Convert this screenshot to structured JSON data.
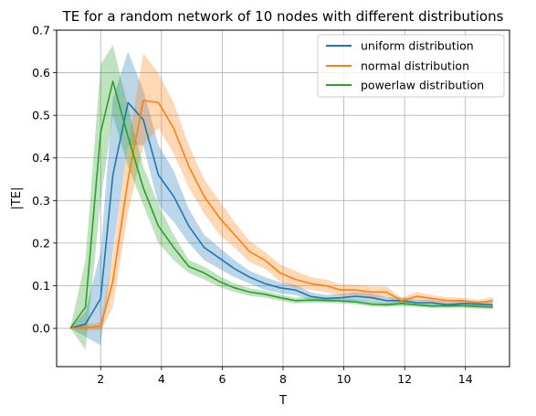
{
  "chart_data": {
    "type": "line",
    "title": "TE for a random network of 10 nodes with different distributions",
    "xlabel": "T",
    "ylabel": "|TE|",
    "xlim": [
      0.55,
      15.45
    ],
    "ylim": [
      -0.09,
      0.7
    ],
    "x_ticks": [
      2,
      4,
      6,
      8,
      10,
      12,
      14
    ],
    "y_ticks": [
      0.0,
      0.1,
      0.2,
      0.3,
      0.4,
      0.5,
      0.6,
      0.7
    ],
    "x_tick_labels": [
      "2",
      "4",
      "6",
      "8",
      "10",
      "12",
      "14"
    ],
    "y_tick_labels": [
      "0.0",
      "0.1",
      "0.2",
      "0.3",
      "0.4",
      "0.5",
      "0.6",
      "0.7"
    ],
    "grid": true,
    "legend_position": "top-right",
    "x": [
      1.0,
      1.5,
      2.0,
      2.4,
      2.9,
      3.4,
      3.9,
      4.4,
      4.9,
      5.4,
      5.9,
      6.4,
      6.9,
      7.4,
      7.9,
      8.4,
      8.9,
      9.4,
      9.9,
      10.4,
      10.9,
      11.4,
      11.9,
      12.4,
      12.9,
      13.4,
      13.9,
      14.4,
      14.9
    ],
    "series": [
      {
        "name": "uniform distribution",
        "color": "#1f77b4",
        "values": [
          0.0,
          0.01,
          0.07,
          0.36,
          0.53,
          0.49,
          0.36,
          0.31,
          0.24,
          0.19,
          0.165,
          0.14,
          0.12,
          0.105,
          0.095,
          0.09,
          0.075,
          0.07,
          0.072,
          0.075,
          0.072,
          0.065,
          0.065,
          0.06,
          0.06,
          0.055,
          0.058,
          0.057,
          0.055
        ],
        "lower": [
          0.0,
          -0.02,
          -0.04,
          0.18,
          0.43,
          0.43,
          0.29,
          0.25,
          0.2,
          0.16,
          0.14,
          0.12,
          0.105,
          0.09,
          0.082,
          0.078,
          0.066,
          0.062,
          0.063,
          0.065,
          0.062,
          0.057,
          0.057,
          0.053,
          0.053,
          0.049,
          0.051,
          0.05,
          0.048
        ],
        "upper": [
          0.0,
          0.04,
          0.18,
          0.54,
          0.65,
          0.56,
          0.43,
          0.37,
          0.28,
          0.22,
          0.19,
          0.16,
          0.135,
          0.12,
          0.108,
          0.102,
          0.085,
          0.078,
          0.081,
          0.085,
          0.082,
          0.073,
          0.073,
          0.067,
          0.067,
          0.061,
          0.065,
          0.064,
          0.062
        ]
      },
      {
        "name": "normal distribution",
        "color": "#ff7f0e",
        "values": [
          0.0,
          0.002,
          0.005,
          0.11,
          0.35,
          0.535,
          0.53,
          0.47,
          0.38,
          0.31,
          0.26,
          0.22,
          0.18,
          0.16,
          0.13,
          0.115,
          0.105,
          0.1,
          0.09,
          0.09,
          0.085,
          0.085,
          0.065,
          0.075,
          0.07,
          0.065,
          0.065,
          0.06,
          0.065
        ],
        "lower": [
          0.0,
          -0.005,
          -0.005,
          0.05,
          0.27,
          0.43,
          0.47,
          0.41,
          0.33,
          0.27,
          0.22,
          0.19,
          0.155,
          0.14,
          0.11,
          0.095,
          0.09,
          0.085,
          0.077,
          0.077,
          0.072,
          0.072,
          0.058,
          0.065,
          0.062,
          0.057,
          0.058,
          0.053,
          0.057
        ],
        "upper": [
          0.0,
          0.009,
          0.015,
          0.17,
          0.43,
          0.645,
          0.6,
          0.53,
          0.43,
          0.35,
          0.3,
          0.25,
          0.205,
          0.18,
          0.15,
          0.135,
          0.12,
          0.115,
          0.103,
          0.103,
          0.098,
          0.098,
          0.072,
          0.085,
          0.078,
          0.073,
          0.072,
          0.067,
          0.073
        ]
      },
      {
        "name": "powerlaw distribution",
        "color": "#2ca02c",
        "values": [
          0.0,
          0.05,
          0.46,
          0.58,
          0.45,
          0.33,
          0.24,
          0.19,
          0.145,
          0.13,
          0.11,
          0.095,
          0.085,
          0.08,
          0.072,
          0.065,
          0.066,
          0.066,
          0.064,
          0.062,
          0.057,
          0.055,
          0.058,
          0.055,
          0.052,
          0.053,
          0.053,
          0.051,
          0.05
        ],
        "lower": [
          0.0,
          -0.05,
          0.3,
          0.5,
          0.38,
          0.29,
          0.2,
          0.16,
          0.13,
          0.115,
          0.097,
          0.085,
          0.076,
          0.072,
          0.065,
          0.058,
          0.06,
          0.06,
          0.058,
          0.056,
          0.051,
          0.05,
          0.052,
          0.05,
          0.047,
          0.048,
          0.048,
          0.046,
          0.045
        ],
        "upper": [
          0.0,
          0.16,
          0.62,
          0.665,
          0.52,
          0.38,
          0.29,
          0.22,
          0.16,
          0.145,
          0.123,
          0.105,
          0.094,
          0.088,
          0.079,
          0.072,
          0.072,
          0.072,
          0.07,
          0.068,
          0.063,
          0.06,
          0.064,
          0.06,
          0.057,
          0.058,
          0.058,
          0.056,
          0.055
        ]
      }
    ]
  }
}
